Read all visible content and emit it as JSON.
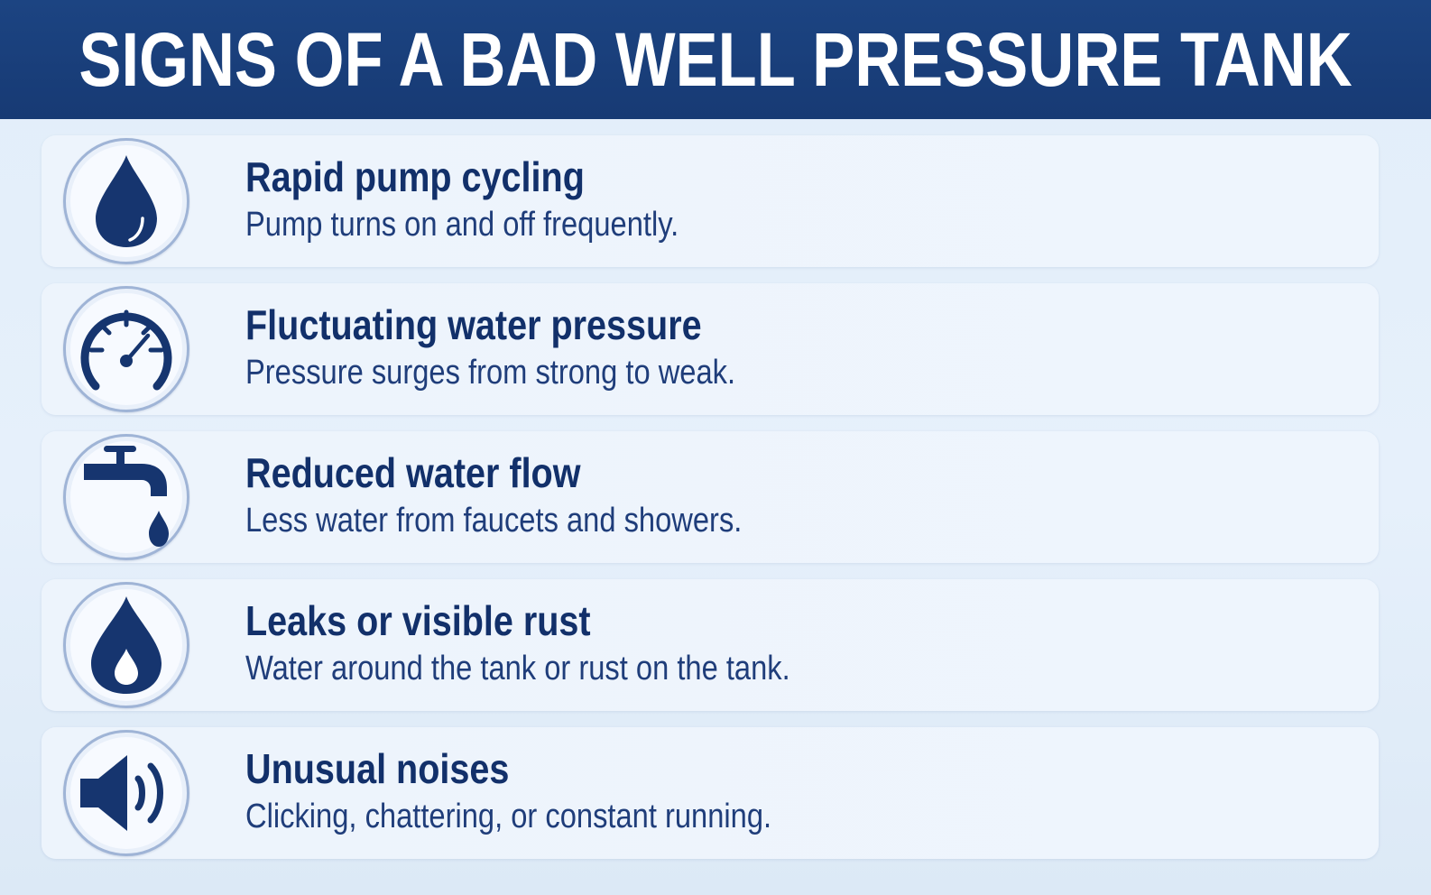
{
  "header": {
    "title": "SIGNS OF A BAD WELL PRESSURE TANK"
  },
  "colors": {
    "header_bg": "#1b417f",
    "icon_fill": "#16356f",
    "title_text": "#12306a",
    "body_text": "#1f3d7a",
    "page_bg": "#e3eef9"
  },
  "items": [
    {
      "icon": "water-drop-icon",
      "title": "Rapid pump cycling",
      "description": "Pump turns on and off frequently."
    },
    {
      "icon": "pressure-gauge-icon",
      "title": "Fluctuating water pressure",
      "description": "Pressure surges from strong to weak."
    },
    {
      "icon": "faucet-icon",
      "title": "Reduced water flow",
      "description": "Less water from faucets and showers."
    },
    {
      "icon": "leak-drop-icon",
      "title": "Leaks or visible rust",
      "description": "Water around the tank or rust on the tank."
    },
    {
      "icon": "speaker-sound-icon",
      "title": "Unusual noises",
      "description": "Clicking, chattering, or constant running."
    }
  ]
}
